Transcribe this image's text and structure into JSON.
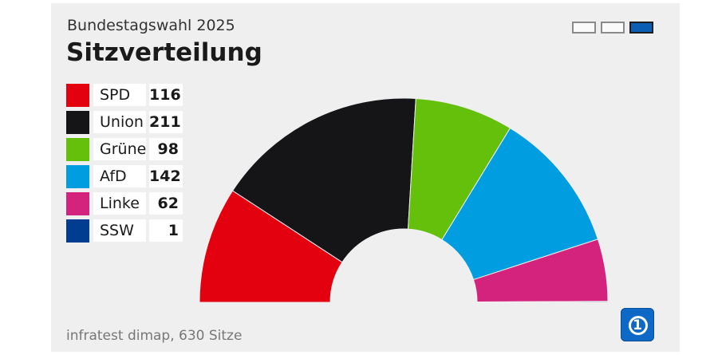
{
  "header": {
    "supertitle": "Bundestagswahl 2025",
    "title": "Sitzverteilung"
  },
  "view_switcher": {
    "active_index": 2,
    "count": 3
  },
  "footer": {
    "source": "infratest dimap, 630 Sitze"
  },
  "logo": {
    "icon": "tagesschau-1-logo-icon",
    "text": "1",
    "color": "#0e68c6"
  },
  "chart_data": {
    "type": "pie",
    "subtype": "parliament-half-donut",
    "title": "Sitzverteilung",
    "subtitle": "Bundestagswahl 2025",
    "total": 630,
    "series": [
      {
        "name": "SPD",
        "value": 116,
        "color": "#e3000f"
      },
      {
        "name": "Union",
        "value": 211,
        "color": "#151518"
      },
      {
        "name": "Grüne",
        "value": 98,
        "color": "#64c00a"
      },
      {
        "name": "AfD",
        "value": 142,
        "color": "#009ee0"
      },
      {
        "name": "Linke",
        "value": 62,
        "color": "#d4237d"
      },
      {
        "name": "SSW",
        "value": 1,
        "color": "#003c8f"
      }
    ]
  }
}
